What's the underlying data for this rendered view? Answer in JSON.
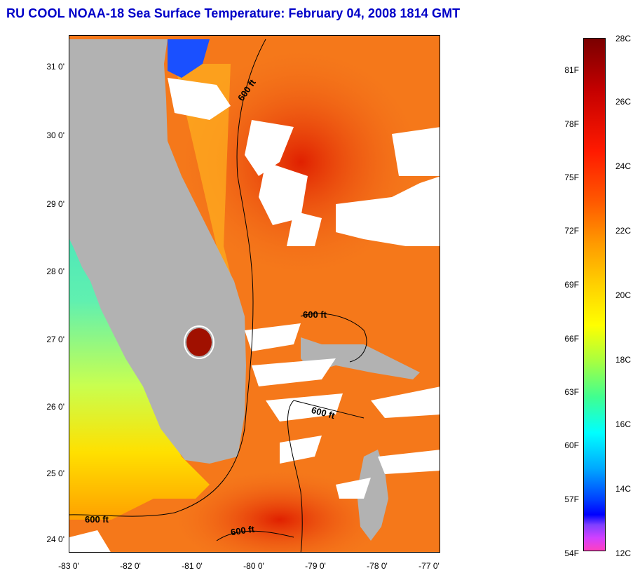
{
  "title": "RU COOL  NOAA-18  Sea Surface Temperature:  February 04, 2008 1814 GMT",
  "lat_labels": [
    "31 0'",
    "30 0'",
    "29 0'",
    "28 0'",
    "27 0'",
    "26 0'",
    "25 0'",
    "24 0'"
  ],
  "lon_labels": [
    "-83 0'",
    "-82 0'",
    "-81 0'",
    "-80 0'",
    "-79 0'",
    "-78 0'",
    "-77 0'"
  ],
  "contour_labels": [
    "600 ft",
    "600 ft",
    "600 ft",
    "600 ft",
    "600 ft"
  ],
  "colorbar": {
    "fahrenheit": [
      "81F",
      "78F",
      "75F",
      "72F",
      "69F",
      "66F",
      "63F",
      "60F",
      "57F",
      "54F"
    ],
    "celsius": [
      "28C",
      "26C",
      "24C",
      "22C",
      "20C",
      "18C",
      "16C",
      "14C",
      "12C"
    ]
  },
  "colors": {
    "title": "#0000c8",
    "land": "#b2b2b2",
    "cloud": "#ffffff",
    "ocean_warm": "#f26a1a"
  }
}
